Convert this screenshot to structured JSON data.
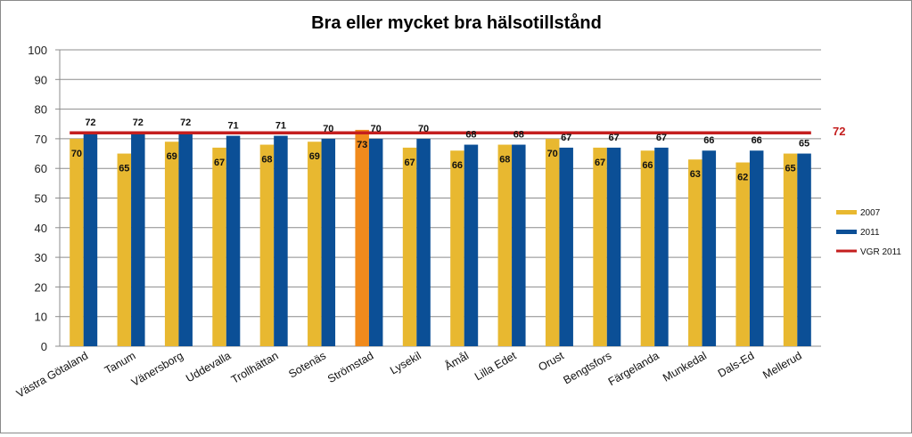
{
  "chart_data": {
    "type": "bar",
    "title": "Bra eller mycket bra hälsotillstånd",
    "xlabel": "",
    "ylabel": "",
    "ylim": [
      0,
      100
    ],
    "yticks": [
      0,
      10,
      20,
      30,
      40,
      50,
      60,
      70,
      80,
      90,
      100
    ],
    "grid": true,
    "legend_position": "right",
    "categories": [
      "Västra Götaland",
      "Tanum",
      "Vänersborg",
      "Uddevalla",
      "Trollhättan",
      "Sotenäs",
      "Strömstad",
      "Lysekil",
      "Åmål",
      "Lilla Edet",
      "Orust",
      "Bengtsfors",
      "Färgelanda",
      "Munkedal",
      "Dals-Ed",
      "Mellerud"
    ],
    "series": [
      {
        "name": "2007",
        "color": "#E8B830",
        "values": [
          70,
          65,
          69,
          67,
          68,
          69,
          73,
          67,
          66,
          68,
          70,
          67,
          66,
          63,
          62,
          65
        ]
      },
      {
        "name": "2011",
        "color": "#0B4F96",
        "values": [
          72,
          72,
          72,
          71,
          71,
          70,
          70,
          70,
          68,
          68,
          67,
          67,
          67,
          66,
          66,
          65
        ]
      }
    ],
    "highlight": {
      "category_index": 6,
      "series": "2007",
      "color": "#F08A1C"
    },
    "reference_line": {
      "name": "VGR 2011",
      "value": 72,
      "label": "72",
      "color": "#C41E1E"
    }
  }
}
